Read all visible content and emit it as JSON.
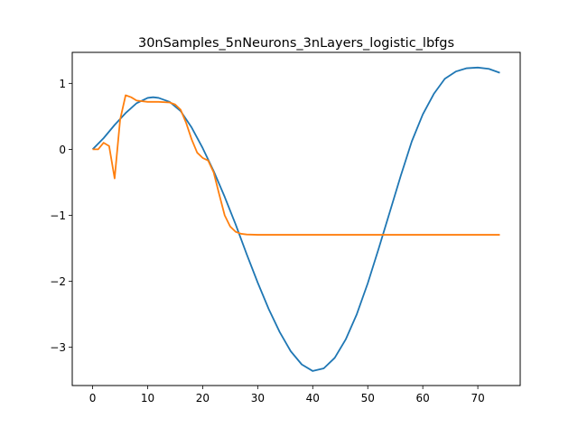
{
  "chart_data": {
    "type": "line",
    "title": "30nSamples_5nNeurons_3nLayers_logistic_lbfgs",
    "xlabel": "",
    "ylabel": "",
    "xlim": [
      -3.7,
      77.7
    ],
    "ylim": [
      -3.58,
      1.47
    ],
    "xticks": [
      0,
      10,
      20,
      30,
      40,
      50,
      60,
      70
    ],
    "yticks": [
      1,
      0,
      -1,
      -2,
      -3
    ],
    "ytick_labels": [
      "1",
      "0",
      "−1",
      "−2",
      "−3"
    ],
    "grid": false,
    "legend": "none",
    "series": [
      {
        "color": "#1f77b4",
        "points": [
          [
            0,
            0
          ],
          [
            2,
            0.17
          ],
          [
            4,
            0.37
          ],
          [
            6,
            0.55
          ],
          [
            8,
            0.7
          ],
          [
            10,
            0.78
          ],
          [
            11,
            0.79
          ],
          [
            12,
            0.78
          ],
          [
            14,
            0.72
          ],
          [
            16,
            0.58
          ],
          [
            18,
            0.33
          ],
          [
            20,
            0.02
          ],
          [
            22,
            -0.33
          ],
          [
            24,
            -0.72
          ],
          [
            26,
            -1.14
          ],
          [
            28,
            -1.59
          ],
          [
            30,
            -2.02
          ],
          [
            32,
            -2.42
          ],
          [
            34,
            -2.77
          ],
          [
            36,
            -3.06
          ],
          [
            38,
            -3.26
          ],
          [
            40,
            -3.36
          ],
          [
            42,
            -3.32
          ],
          [
            44,
            -3.16
          ],
          [
            46,
            -2.88
          ],
          [
            48,
            -2.5
          ],
          [
            50,
            -2.03
          ],
          [
            52,
            -1.5
          ],
          [
            54,
            -0.95
          ],
          [
            56,
            -0.4
          ],
          [
            58,
            0.12
          ],
          [
            60,
            0.53
          ],
          [
            62,
            0.84
          ],
          [
            64,
            1.07
          ],
          [
            66,
            1.18
          ],
          [
            68,
            1.23
          ],
          [
            70,
            1.24
          ],
          [
            72,
            1.22
          ],
          [
            74,
            1.16
          ]
        ]
      },
      {
        "color": "#ff7f0e",
        "points": [
          [
            0,
            0
          ],
          [
            1,
            0
          ],
          [
            2,
            0.1
          ],
          [
            3,
            0.05
          ],
          [
            4,
            -0.44
          ],
          [
            5,
            0.45
          ],
          [
            6,
            0.82
          ],
          [
            7,
            0.79
          ],
          [
            8,
            0.74
          ],
          [
            10,
            0.72
          ],
          [
            12,
            0.72
          ],
          [
            14,
            0.71
          ],
          [
            15,
            0.68
          ],
          [
            16,
            0.6
          ],
          [
            17,
            0.4
          ],
          [
            18,
            0.15
          ],
          [
            19,
            -0.05
          ],
          [
            20,
            -0.13
          ],
          [
            21,
            -0.17
          ],
          [
            22,
            -0.35
          ],
          [
            23,
            -0.68
          ],
          [
            24,
            -1.0
          ],
          [
            25,
            -1.17
          ],
          [
            26,
            -1.25
          ],
          [
            27,
            -1.28
          ],
          [
            28,
            -1.29
          ],
          [
            30,
            -1.295
          ],
          [
            40,
            -1.295
          ],
          [
            50,
            -1.295
          ],
          [
            60,
            -1.295
          ],
          [
            70,
            -1.295
          ],
          [
            74,
            -1.295
          ]
        ]
      }
    ]
  }
}
